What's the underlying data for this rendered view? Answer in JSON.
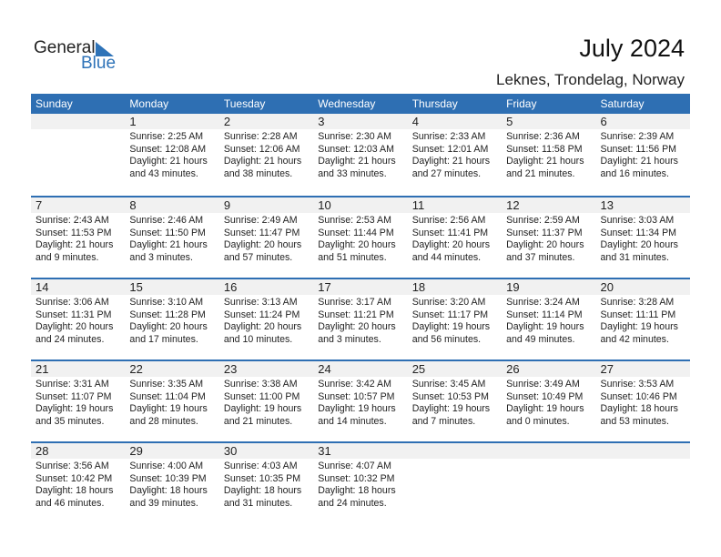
{
  "logo": {
    "line1": "General",
    "line2": "Blue"
  },
  "title": "July 2024",
  "location": "Leknes, Trondelag, Norway",
  "colors": {
    "header": "#2e6fb3",
    "accent": "#2e73b8",
    "date_band": "#f1f1f1"
  },
  "weekdays": [
    "Sunday",
    "Monday",
    "Tuesday",
    "Wednesday",
    "Thursday",
    "Friday",
    "Saturday"
  ],
  "weeks": [
    [
      null,
      {
        "day": "1",
        "sunrise": "Sunrise: 2:25 AM",
        "sunset": "Sunset: 12:08 AM",
        "daylight": "Daylight: 21 hours",
        "minutes": "and 43 minutes."
      },
      {
        "day": "2",
        "sunrise": "Sunrise: 2:28 AM",
        "sunset": "Sunset: 12:06 AM",
        "daylight": "Daylight: 21 hours",
        "minutes": "and 38 minutes."
      },
      {
        "day": "3",
        "sunrise": "Sunrise: 2:30 AM",
        "sunset": "Sunset: 12:03 AM",
        "daylight": "Daylight: 21 hours",
        "minutes": "and 33 minutes."
      },
      {
        "day": "4",
        "sunrise": "Sunrise: 2:33 AM",
        "sunset": "Sunset: 12:01 AM",
        "daylight": "Daylight: 21 hours",
        "minutes": "and 27 minutes."
      },
      {
        "day": "5",
        "sunrise": "Sunrise: 2:36 AM",
        "sunset": "Sunset: 11:58 PM",
        "daylight": "Daylight: 21 hours",
        "minutes": "and 21 minutes."
      },
      {
        "day": "6",
        "sunrise": "Sunrise: 2:39 AM",
        "sunset": "Sunset: 11:56 PM",
        "daylight": "Daylight: 21 hours",
        "minutes": "and 16 minutes."
      }
    ],
    [
      {
        "day": "7",
        "sunrise": "Sunrise: 2:43 AM",
        "sunset": "Sunset: 11:53 PM",
        "daylight": "Daylight: 21 hours",
        "minutes": "and 9 minutes."
      },
      {
        "day": "8",
        "sunrise": "Sunrise: 2:46 AM",
        "sunset": "Sunset: 11:50 PM",
        "daylight": "Daylight: 21 hours",
        "minutes": "and 3 minutes."
      },
      {
        "day": "9",
        "sunrise": "Sunrise: 2:49 AM",
        "sunset": "Sunset: 11:47 PM",
        "daylight": "Daylight: 20 hours",
        "minutes": "and 57 minutes."
      },
      {
        "day": "10",
        "sunrise": "Sunrise: 2:53 AM",
        "sunset": "Sunset: 11:44 PM",
        "daylight": "Daylight: 20 hours",
        "minutes": "and 51 minutes."
      },
      {
        "day": "11",
        "sunrise": "Sunrise: 2:56 AM",
        "sunset": "Sunset: 11:41 PM",
        "daylight": "Daylight: 20 hours",
        "minutes": "and 44 minutes."
      },
      {
        "day": "12",
        "sunrise": "Sunrise: 2:59 AM",
        "sunset": "Sunset: 11:37 PM",
        "daylight": "Daylight: 20 hours",
        "minutes": "and 37 minutes."
      },
      {
        "day": "13",
        "sunrise": "Sunrise: 3:03 AM",
        "sunset": "Sunset: 11:34 PM",
        "daylight": "Daylight: 20 hours",
        "minutes": "and 31 minutes."
      }
    ],
    [
      {
        "day": "14",
        "sunrise": "Sunrise: 3:06 AM",
        "sunset": "Sunset: 11:31 PM",
        "daylight": "Daylight: 20 hours",
        "minutes": "and 24 minutes."
      },
      {
        "day": "15",
        "sunrise": "Sunrise: 3:10 AM",
        "sunset": "Sunset: 11:28 PM",
        "daylight": "Daylight: 20 hours",
        "minutes": "and 17 minutes."
      },
      {
        "day": "16",
        "sunrise": "Sunrise: 3:13 AM",
        "sunset": "Sunset: 11:24 PM",
        "daylight": "Daylight: 20 hours",
        "minutes": "and 10 minutes."
      },
      {
        "day": "17",
        "sunrise": "Sunrise: 3:17 AM",
        "sunset": "Sunset: 11:21 PM",
        "daylight": "Daylight: 20 hours",
        "minutes": "and 3 minutes."
      },
      {
        "day": "18",
        "sunrise": "Sunrise: 3:20 AM",
        "sunset": "Sunset: 11:17 PM",
        "daylight": "Daylight: 19 hours",
        "minutes": "and 56 minutes."
      },
      {
        "day": "19",
        "sunrise": "Sunrise: 3:24 AM",
        "sunset": "Sunset: 11:14 PM",
        "daylight": "Daylight: 19 hours",
        "minutes": "and 49 minutes."
      },
      {
        "day": "20",
        "sunrise": "Sunrise: 3:28 AM",
        "sunset": "Sunset: 11:11 PM",
        "daylight": "Daylight: 19 hours",
        "minutes": "and 42 minutes."
      }
    ],
    [
      {
        "day": "21",
        "sunrise": "Sunrise: 3:31 AM",
        "sunset": "Sunset: 11:07 PM",
        "daylight": "Daylight: 19 hours",
        "minutes": "and 35 minutes."
      },
      {
        "day": "22",
        "sunrise": "Sunrise: 3:35 AM",
        "sunset": "Sunset: 11:04 PM",
        "daylight": "Daylight: 19 hours",
        "minutes": "and 28 minutes."
      },
      {
        "day": "23",
        "sunrise": "Sunrise: 3:38 AM",
        "sunset": "Sunset: 11:00 PM",
        "daylight": "Daylight: 19 hours",
        "minutes": "and 21 minutes."
      },
      {
        "day": "24",
        "sunrise": "Sunrise: 3:42 AM",
        "sunset": "Sunset: 10:57 PM",
        "daylight": "Daylight: 19 hours",
        "minutes": "and 14 minutes."
      },
      {
        "day": "25",
        "sunrise": "Sunrise: 3:45 AM",
        "sunset": "Sunset: 10:53 PM",
        "daylight": "Daylight: 19 hours",
        "minutes": "and 7 minutes."
      },
      {
        "day": "26",
        "sunrise": "Sunrise: 3:49 AM",
        "sunset": "Sunset: 10:49 PM",
        "daylight": "Daylight: 19 hours",
        "minutes": "and 0 minutes."
      },
      {
        "day": "27",
        "sunrise": "Sunrise: 3:53 AM",
        "sunset": "Sunset: 10:46 PM",
        "daylight": "Daylight: 18 hours",
        "minutes": "and 53 minutes."
      }
    ],
    [
      {
        "day": "28",
        "sunrise": "Sunrise: 3:56 AM",
        "sunset": "Sunset: 10:42 PM",
        "daylight": "Daylight: 18 hours",
        "minutes": "and 46 minutes."
      },
      {
        "day": "29",
        "sunrise": "Sunrise: 4:00 AM",
        "sunset": "Sunset: 10:39 PM",
        "daylight": "Daylight: 18 hours",
        "minutes": "and 39 minutes."
      },
      {
        "day": "30",
        "sunrise": "Sunrise: 4:03 AM",
        "sunset": "Sunset: 10:35 PM",
        "daylight": "Daylight: 18 hours",
        "minutes": "and 31 minutes."
      },
      {
        "day": "31",
        "sunrise": "Sunrise: 4:07 AM",
        "sunset": "Sunset: 10:32 PM",
        "daylight": "Daylight: 18 hours",
        "minutes": "and 24 minutes."
      },
      null,
      null,
      null
    ]
  ]
}
